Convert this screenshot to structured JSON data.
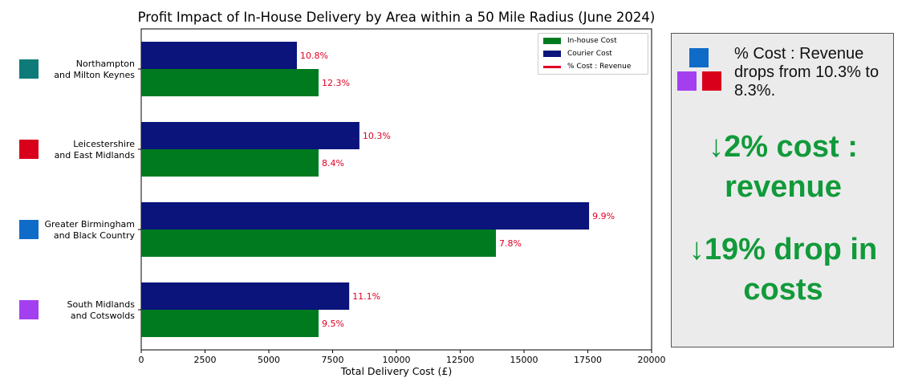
{
  "chart_data": {
    "type": "bar",
    "orientation": "horizontal",
    "title": "Profit Impact of In-House Delivery by Area within a 50 Mile Radius (June 2024)",
    "xlabel": "Total Delivery Cost (£)",
    "ylabel": "",
    "xlim": [
      0,
      20000
    ],
    "xticks": [
      0,
      2500,
      5000,
      7500,
      10000,
      12500,
      15000,
      17500,
      20000
    ],
    "grid": false,
    "legend_position": "top-right",
    "categories": [
      {
        "line1": "Northampton",
        "line2": "and Milton Keynes",
        "marker_color": "#0f7b78"
      },
      {
        "line1": "Leicestershire",
        "line2": "and East Midlands",
        "marker_color": "#d9001b"
      },
      {
        "line1": "Greater Birmingham",
        "line2": "and Black Country",
        "marker_color": "#0f6bc8"
      },
      {
        "line1": "South Midlands",
        "line2": "and Cotswolds",
        "marker_color": "#a43ff0"
      }
    ],
    "series": [
      {
        "name": "In-house Cost",
        "color": "#007a1f",
        "values": [
          6950,
          6950,
          13900,
          6950
        ],
        "labels": [
          "12.3%",
          "8.4%",
          "7.8%",
          "9.5%"
        ]
      },
      {
        "name": "Courier Cost",
        "color": "#0a147a",
        "values": [
          6100,
          8550,
          17550,
          8150
        ],
        "labels": [
          "10.8%",
          "10.3%",
          "9.9%",
          "11.1%"
        ]
      }
    ],
    "legend": [
      {
        "label": "In-house Cost",
        "color": "#007a1f",
        "kind": "patch"
      },
      {
        "label": "Courier Cost",
        "color": "#0a147a",
        "kind": "patch"
      },
      {
        "label": "% Cost : Revenue",
        "color": "#e00022",
        "kind": "line"
      }
    ],
    "annotation_color": "#e00022"
  },
  "side_panel": {
    "note": "% Cost : Revenue drops from 10.3% to 8.3%.",
    "headline1": "↓2% cost : revenue",
    "headline2": "↓19% drop in costs",
    "headline_color": "#119a3a",
    "squares": [
      "#0f6bc8",
      "#a43ff0",
      "#d9001b"
    ]
  }
}
